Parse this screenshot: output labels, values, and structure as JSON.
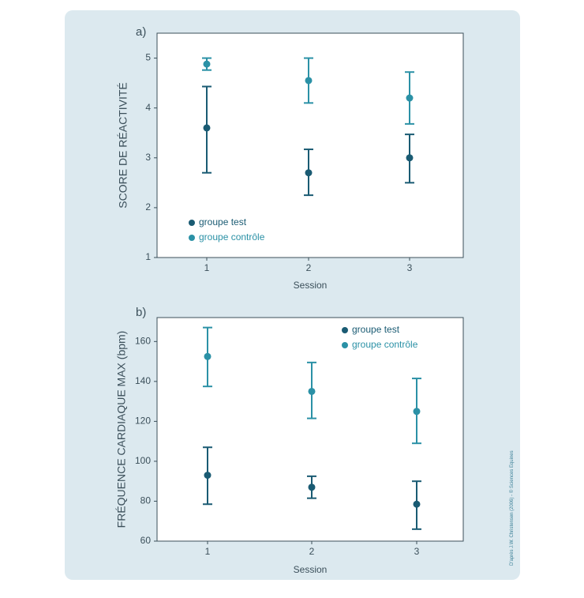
{
  "credit": "D'après J.W. Christensen (2006) - © Sciences Equines",
  "colors": {
    "test": "#1a5b73",
    "control": "#2b91a6",
    "axis": "#3b4f5a",
    "text": "#3b4f5a"
  },
  "chart_data": [
    {
      "type": "scatter",
      "panel_label": "a)",
      "xlabel": "Session",
      "ylabel": "SCORE DE RÉACTIVITÉ",
      "xlim": [
        0.5,
        3.5
      ],
      "ylim": [
        1,
        5.5
      ],
      "xticks": [
        1,
        2,
        3
      ],
      "yticks": [
        1,
        2,
        3,
        4,
        5
      ],
      "legend_position": "bottom-left",
      "series": [
        {
          "name": "groupe test",
          "color_key": "test",
          "points": [
            {
              "x": 1,
              "y": 3.6,
              "lo": 2.7,
              "hi": 4.43
            },
            {
              "x": 2,
              "y": 2.7,
              "lo": 2.25,
              "hi": 3.17
            },
            {
              "x": 3,
              "y": 3.0,
              "lo": 2.5,
              "hi": 3.47
            }
          ]
        },
        {
          "name": "groupe contrôle",
          "color_key": "control",
          "points": [
            {
              "x": 1,
              "y": 4.88,
              "lo": 4.76,
              "hi": 5.0
            },
            {
              "x": 2,
              "y": 4.55,
              "lo": 4.1,
              "hi": 5.0
            },
            {
              "x": 3,
              "y": 4.2,
              "lo": 3.68,
              "hi": 4.72
            }
          ]
        }
      ]
    },
    {
      "type": "scatter",
      "panel_label": "b)",
      "xlabel": "Session",
      "ylabel": "FRÉQUENCE CARDIAQUE MAX (bpm)",
      "xlim": [
        0.5,
        3.5
      ],
      "ylim": [
        60,
        172
      ],
      "xticks": [
        1,
        2,
        3
      ],
      "yticks": [
        60,
        80,
        100,
        120,
        140,
        160
      ],
      "legend_position": "top-right",
      "series": [
        {
          "name": "groupe test",
          "color_key": "test",
          "points": [
            {
              "x": 1,
              "y": 93,
              "lo": 78.5,
              "hi": 107
            },
            {
              "x": 2,
              "y": 87,
              "lo": 81.5,
              "hi": 92.5
            },
            {
              "x": 3,
              "y": 78.5,
              "lo": 66,
              "hi": 90
            }
          ]
        },
        {
          "name": "groupe contrôle",
          "color_key": "control",
          "points": [
            {
              "x": 1,
              "y": 152.5,
              "lo": 137.5,
              "hi": 167
            },
            {
              "x": 2,
              "y": 135,
              "lo": 121.5,
              "hi": 149.5
            },
            {
              "x": 3,
              "y": 125,
              "lo": 109,
              "hi": 141.5
            }
          ]
        }
      ]
    }
  ]
}
